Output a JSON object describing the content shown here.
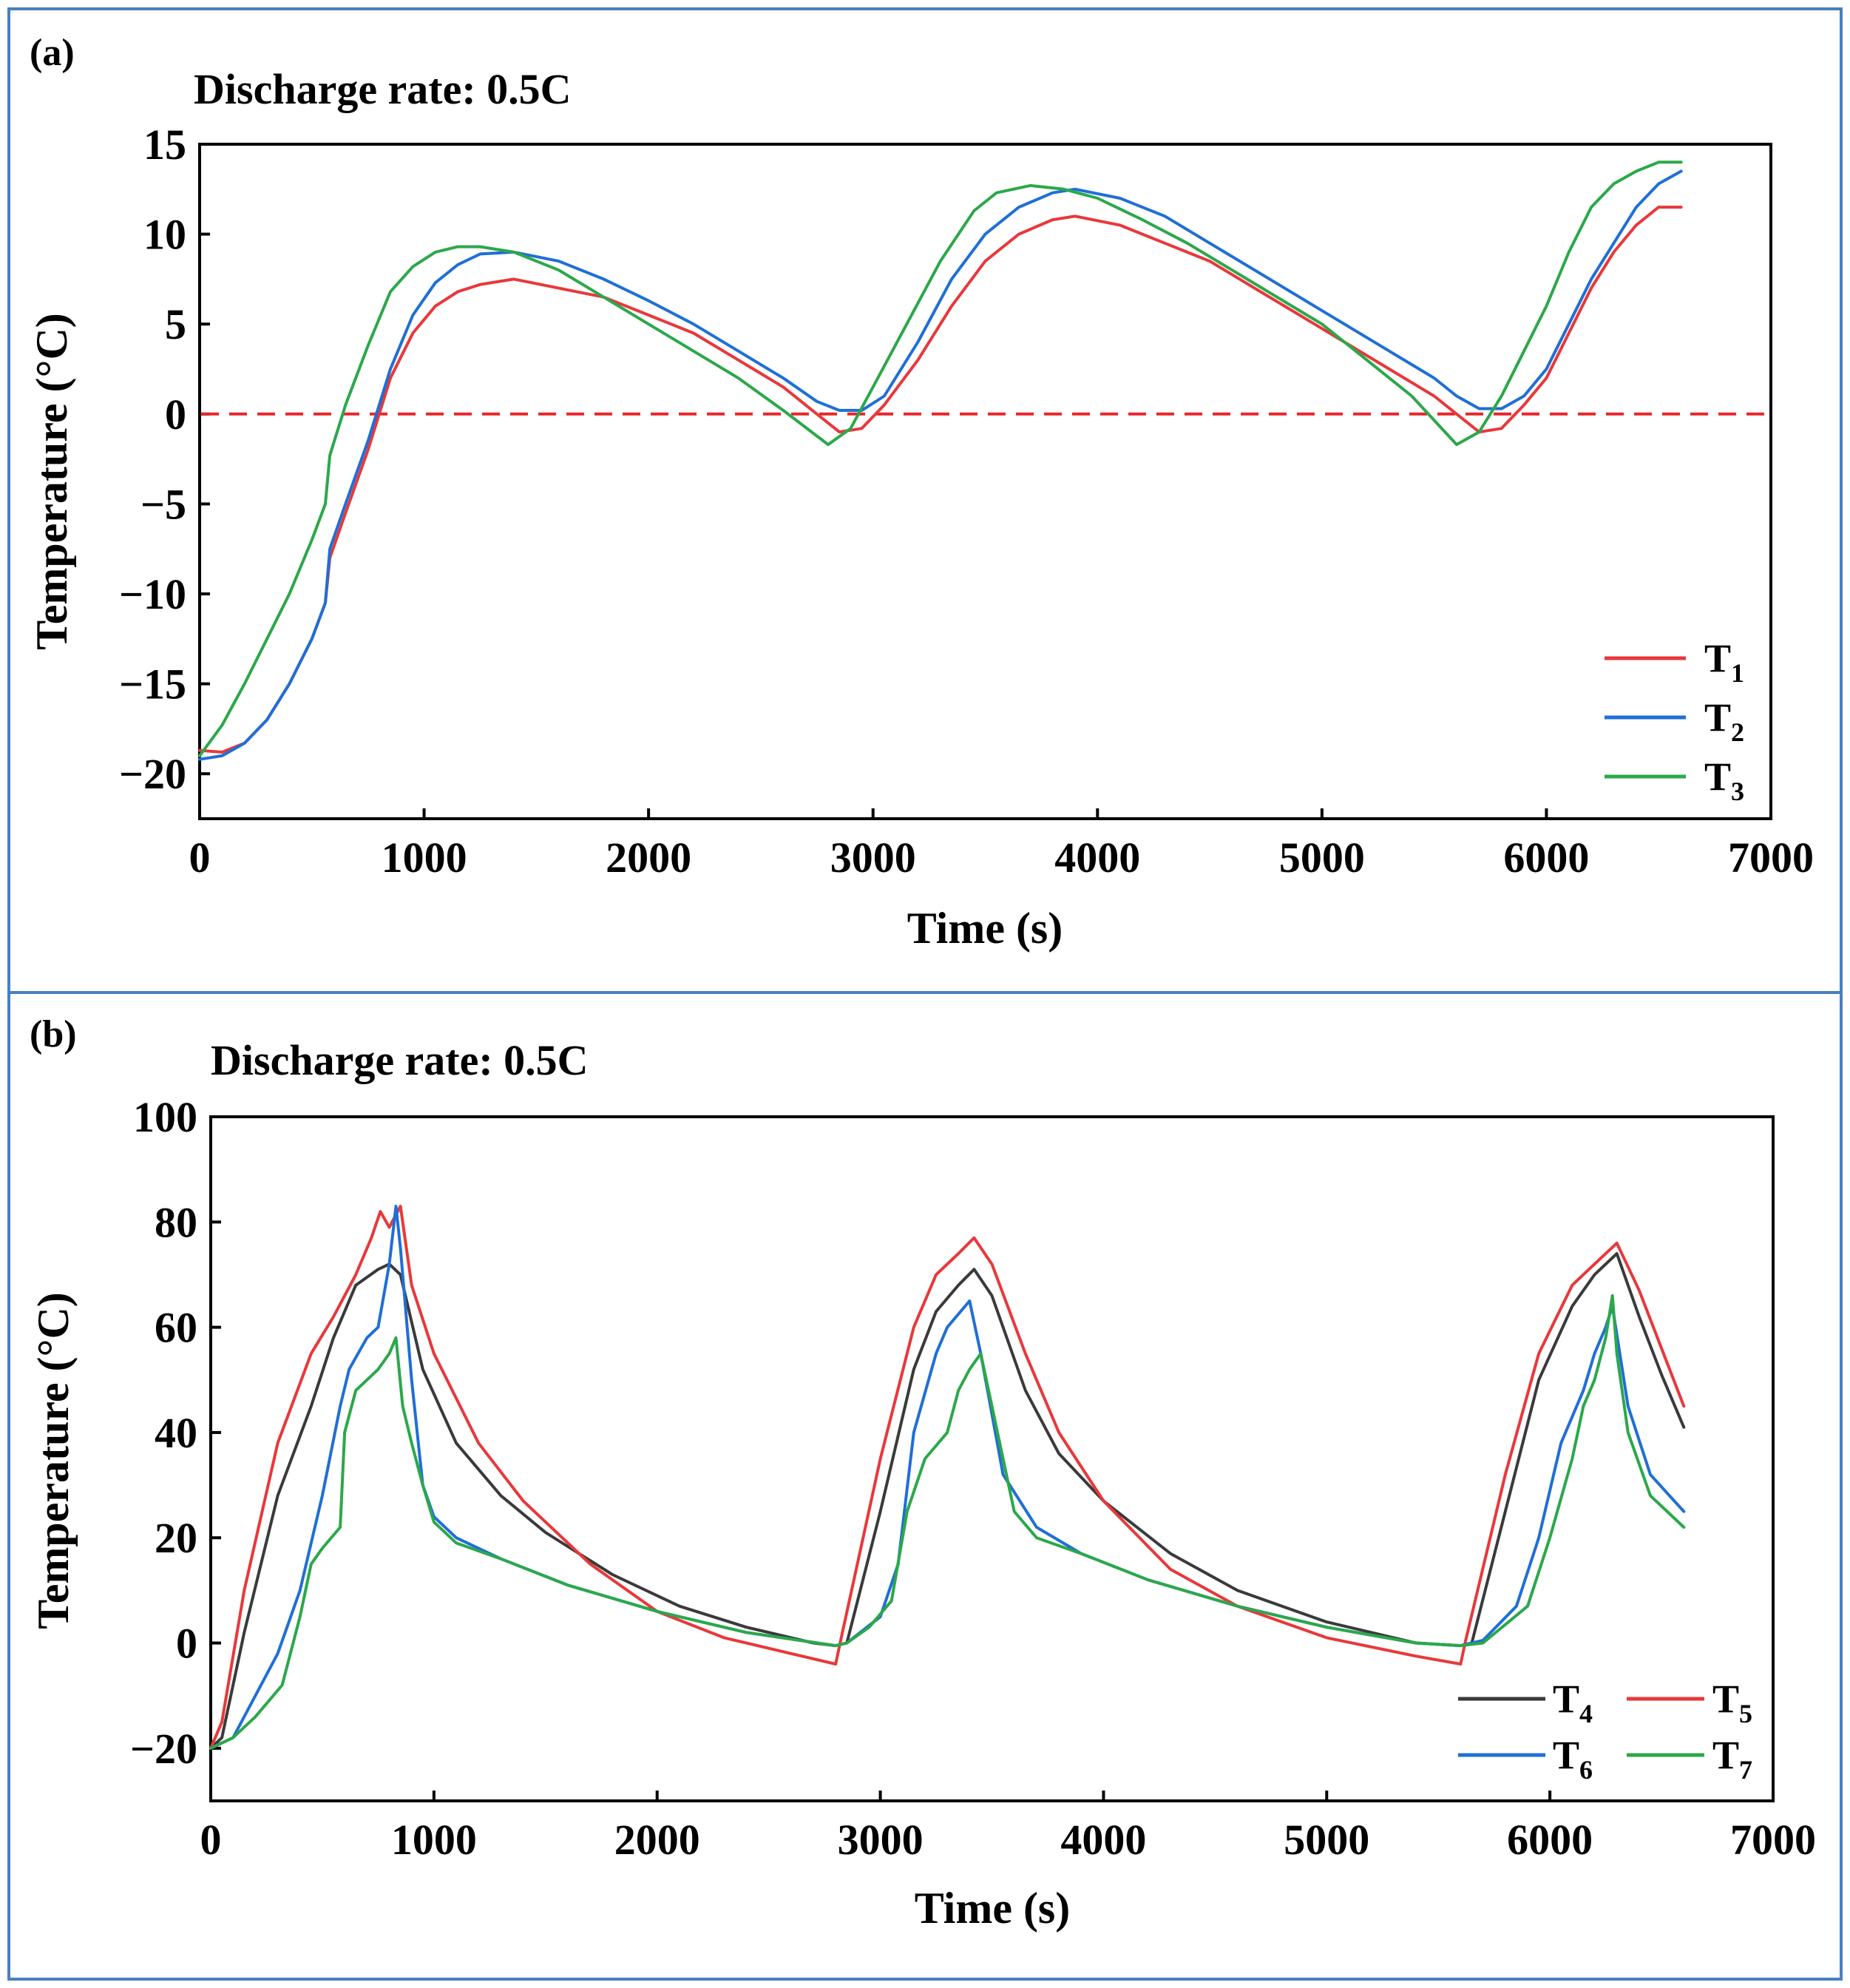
{
  "colors": {
    "panel_border": "#4a7fc1",
    "axis": "#000000",
    "zero_line": "#e8262a",
    "T1": "#e8383b",
    "T2": "#1f6fd6",
    "T3": "#2ba84a",
    "T4": "#3a3a3a",
    "T5": "#e8383b",
    "T6": "#1f6fd6",
    "T7": "#2ba84a"
  },
  "chart_data": [
    {
      "panel_label": "(a)",
      "type": "line",
      "title": "Discharge rate: 0.5C",
      "xlabel": "Time (s)",
      "ylabel": "Temperature (°C)",
      "xlim": [
        0,
        7000
      ],
      "ylim": [
        -22.5,
        15
      ],
      "xticks": [
        0,
        1000,
        2000,
        3000,
        4000,
        5000,
        6000,
        7000
      ],
      "xtick_labels": [
        "0",
        "1000",
        "2000",
        "3000",
        "4000",
        "5000",
        "6000",
        "7000"
      ],
      "yticks": [
        -20,
        -15,
        -10,
        -5,
        0,
        5,
        10,
        15
      ],
      "ytick_labels": [
        "−20",
        "−15",
        "−10",
        "−5",
        "0",
        "5",
        "10",
        "15"
      ],
      "reference_line": {
        "y": 0,
        "style": "dashed",
        "color": "#e8262a"
      },
      "legend_position": "lower-right",
      "series": [
        {
          "name": "T",
          "subscript": "1",
          "color": "#e8383b",
          "x": [
            0,
            100,
            200,
            300,
            400,
            500,
            560,
            580,
            650,
            750,
            850,
            950,
            1050,
            1150,
            1250,
            1400,
            1600,
            1800,
            2000,
            2200,
            2400,
            2600,
            2750,
            2850,
            2950,
            3050,
            3200,
            3350,
            3500,
            3650,
            3800,
            3900,
            4100,
            4300,
            4500,
            4700,
            4900,
            5100,
            5300,
            5500,
            5600,
            5700,
            5800,
            5900,
            6000,
            6100,
            6200,
            6300,
            6400,
            6500,
            6600
          ],
          "y": [
            -18.7,
            -18.8,
            -18.3,
            -17.0,
            -15.0,
            -12.5,
            -10.5,
            -8.0,
            -5.5,
            -2.0,
            2.0,
            4.5,
            6.0,
            6.8,
            7.2,
            7.5,
            7.0,
            6.5,
            5.5,
            4.5,
            3.0,
            1.5,
            0.0,
            -1.0,
            -0.8,
            0.5,
            3.0,
            6.0,
            8.5,
            10.0,
            10.8,
            11.0,
            10.5,
            9.5,
            8.5,
            7.0,
            5.5,
            4.0,
            2.5,
            1.0,
            0.0,
            -1.0,
            -0.8,
            0.5,
            2.0,
            4.5,
            7.0,
            9.0,
            10.5,
            11.5,
            11.5
          ]
        },
        {
          "name": "T",
          "subscript": "2",
          "color": "#1f6fd6",
          "x": [
            0,
            100,
            200,
            300,
            400,
            500,
            560,
            580,
            650,
            750,
            850,
            950,
            1050,
            1150,
            1250,
            1400,
            1600,
            1800,
            2000,
            2200,
            2400,
            2600,
            2750,
            2850,
            2950,
            3050,
            3200,
            3350,
            3500,
            3650,
            3800,
            3900,
            4100,
            4300,
            4500,
            4700,
            4900,
            5100,
            5300,
            5500,
            5600,
            5700,
            5800,
            5900,
            6000,
            6100,
            6200,
            6300,
            6400,
            6500,
            6600
          ],
          "y": [
            -19.2,
            -19.0,
            -18.3,
            -17.0,
            -15.0,
            -12.5,
            -10.5,
            -7.5,
            -5.0,
            -1.5,
            2.5,
            5.5,
            7.3,
            8.3,
            8.9,
            9.0,
            8.5,
            7.5,
            6.3,
            5.0,
            3.5,
            2.0,
            0.7,
            0.2,
            0.2,
            1.0,
            4.0,
            7.5,
            10.0,
            11.5,
            12.3,
            12.5,
            12.0,
            11.0,
            9.5,
            8.0,
            6.5,
            5.0,
            3.5,
            2.0,
            1.0,
            0.3,
            0.3,
            1.0,
            2.5,
            5.0,
            7.5,
            9.5,
            11.5,
            12.8,
            13.5
          ]
        },
        {
          "name": "T",
          "subscript": "3",
          "color": "#2ba84a",
          "x": [
            0,
            100,
            200,
            300,
            400,
            500,
            560,
            580,
            650,
            750,
            850,
            950,
            1050,
            1150,
            1250,
            1400,
            1600,
            1800,
            2000,
            2200,
            2400,
            2600,
            2800,
            2900,
            3000,
            3150,
            3300,
            3450,
            3550,
            3700,
            3850,
            4000,
            4200,
            4400,
            4600,
            4800,
            5000,
            5200,
            5400,
            5600,
            5700,
            5800,
            5900,
            6000,
            6100,
            6200,
            6300,
            6400,
            6500,
            6600
          ],
          "y": [
            -19.0,
            -17.3,
            -15.0,
            -12.5,
            -10.0,
            -7.0,
            -5.0,
            -2.3,
            0.5,
            3.8,
            6.8,
            8.2,
            9.0,
            9.3,
            9.3,
            9.0,
            8.0,
            6.5,
            5.0,
            3.5,
            2.0,
            0.2,
            -1.7,
            -0.8,
            1.5,
            5.0,
            8.5,
            11.3,
            12.3,
            12.7,
            12.5,
            12.0,
            10.8,
            9.5,
            8.0,
            6.5,
            5.0,
            3.0,
            1.0,
            -1.7,
            -1.0,
            1.0,
            3.5,
            6.0,
            9.0,
            11.5,
            12.8,
            13.5,
            14.0,
            14.0
          ]
        }
      ]
    },
    {
      "panel_label": "(b)",
      "type": "line",
      "title": "Discharge rate: 0.5C",
      "xlabel": "Time (s)",
      "ylabel": "Temperature (°C)",
      "xlim": [
        0,
        7000
      ],
      "ylim": [
        -30,
        100
      ],
      "xticks": [
        0,
        1000,
        2000,
        3000,
        4000,
        5000,
        6000,
        7000
      ],
      "xtick_labels": [
        "0",
        "1000",
        "2000",
        "3000",
        "4000",
        "5000",
        "6000",
        "7000"
      ],
      "yticks": [
        -20,
        0,
        20,
        40,
        60,
        80,
        100
      ],
      "ytick_labels": [
        "−20",
        "0",
        "20",
        "40",
        "60",
        "80",
        "100"
      ],
      "legend_position": "lower-right",
      "series": [
        {
          "name": "T",
          "subscript": "4",
          "color": "#3a3a3a",
          "x": [
            0,
            50,
            150,
            300,
            450,
            550,
            650,
            750,
            800,
            850,
            950,
            1100,
            1300,
            1500,
            1800,
            2100,
            2400,
            2700,
            2800,
            2850,
            3000,
            3150,
            3250,
            3350,
            3420,
            3500,
            3650,
            3800,
            4000,
            4300,
            4600,
            5000,
            5400,
            5600,
            5650,
            5800,
            5950,
            6100,
            6200,
            6300,
            6400,
            6500,
            6600
          ],
          "y": [
            -20,
            -18,
            2,
            28,
            45,
            58,
            68,
            71,
            72,
            70,
            52,
            38,
            28,
            21,
            13,
            7,
            3,
            0,
            -0.5,
            0,
            25,
            52,
            63,
            68,
            71,
            66,
            48,
            36,
            27,
            17,
            10,
            4,
            0,
            -0.5,
            0,
            25,
            50,
            64,
            70,
            74,
            62,
            51,
            41
          ]
        },
        {
          "name": "T",
          "subscript": "5",
          "color": "#e8383b",
          "x": [
            0,
            50,
            150,
            300,
            450,
            550,
            650,
            720,
            760,
            800,
            850,
            900,
            1000,
            1200,
            1400,
            1700,
            2000,
            2300,
            2600,
            2800,
            2820,
            3000,
            3150,
            3250,
            3350,
            3420,
            3500,
            3650,
            3800,
            4000,
            4300,
            4600,
            5000,
            5400,
            5600,
            5620,
            5800,
            5950,
            6100,
            6200,
            6300,
            6400,
            6500,
            6600
          ],
          "y": [
            -20,
            -15,
            10,
            38,
            55,
            62,
            70,
            77,
            82,
            79,
            83,
            68,
            55,
            38,
            27,
            15,
            6,
            1,
            -2,
            -4,
            0,
            35,
            60,
            70,
            74,
            77,
            72,
            55,
            40,
            27,
            14,
            7,
            1,
            -2.5,
            -4,
            0,
            32,
            55,
            68,
            72,
            76,
            67,
            56,
            45
          ]
        },
        {
          "name": "T",
          "subscript": "6",
          "color": "#1f6fd6",
          "x": [
            0,
            100,
            200,
            300,
            400,
            500,
            580,
            620,
            700,
            750,
            800,
            830,
            850,
            900,
            950,
            1000,
            1100,
            1300,
            1600,
            2000,
            2400,
            2800,
            2850,
            3000,
            3080,
            3150,
            3250,
            3300,
            3400,
            3450,
            3550,
            3700,
            3900,
            4200,
            4600,
            5000,
            5400,
            5600,
            5700,
            5850,
            5950,
            6050,
            6150,
            6200,
            6250,
            6280,
            6350,
            6450,
            6600
          ],
          "y": [
            -20,
            -18,
            -10,
            -2,
            10,
            28,
            45,
            52,
            58,
            60,
            72,
            83,
            75,
            50,
            30,
            24,
            20,
            16,
            11,
            6,
            2,
            -0.5,
            0,
            5,
            15,
            40,
            55,
            60,
            65,
            55,
            32,
            22,
            17,
            12,
            7,
            3,
            0,
            -0.5,
            0.5,
            7,
            20,
            38,
            48,
            55,
            60,
            64,
            45,
            32,
            25
          ]
        },
        {
          "name": "T",
          "subscript": "7",
          "color": "#2ba84a",
          "x": [
            0,
            100,
            200,
            320,
            400,
            450,
            500,
            580,
            600,
            650,
            700,
            750,
            800,
            830,
            860,
            900,
            950,
            1000,
            1100,
            1300,
            1600,
            2000,
            2400,
            2800,
            2850,
            2950,
            3050,
            3120,
            3200,
            3300,
            3350,
            3400,
            3450,
            3500,
            3600,
            3700,
            3900,
            4200,
            4600,
            5000,
            5400,
            5600,
            5700,
            5900,
            6000,
            6100,
            6150,
            6200,
            6250,
            6280,
            6300,
            6350,
            6450,
            6600
          ],
          "y": [
            -20,
            -18,
            -14,
            -8,
            5,
            15,
            18,
            22,
            40,
            48,
            50,
            52,
            55,
            58,
            45,
            38,
            30,
            23,
            19,
            16,
            11,
            6,
            2,
            -0.5,
            0,
            3,
            8,
            25,
            35,
            40,
            48,
            52,
            55,
            45,
            25,
            20,
            17,
            12,
            7,
            3,
            0,
            -0.5,
            0,
            7,
            20,
            35,
            45,
            50,
            58,
            66,
            55,
            40,
            28,
            22
          ]
        }
      ]
    }
  ]
}
